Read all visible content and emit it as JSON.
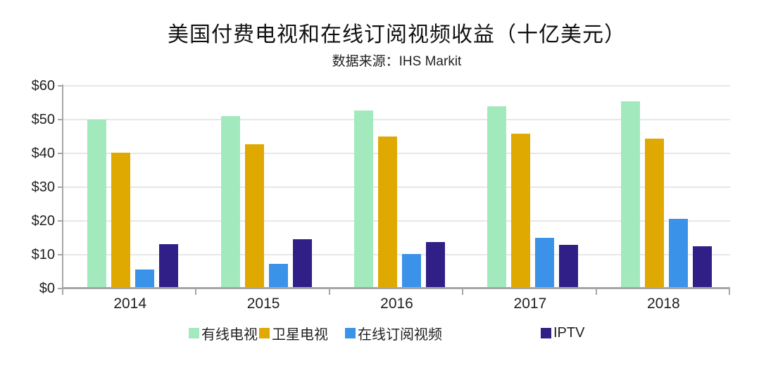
{
  "chart": {
    "title": "美国付费电视和在线订阅视频收益（十亿美元）",
    "subtitle": "数据来源：IHS Markit"
  },
  "chart_data": {
    "type": "bar",
    "title": "美国付费电视和在线订阅视频收益（十亿美元）",
    "subtitle": "数据来源：IHS Markit",
    "categories": [
      "2014",
      "2015",
      "2016",
      "2017",
      "2018"
    ],
    "series": [
      {
        "key": "cable-tv",
        "name": "有线电视",
        "color": "#a3e9be",
        "values": [
          50.0,
          51.1,
          52.7,
          54.0,
          55.4
        ]
      },
      {
        "key": "satellite-tv",
        "name": "卫星电视",
        "color": "#dfa901",
        "values": [
          40.3,
          42.8,
          45.0,
          45.8,
          44.3
        ]
      },
      {
        "key": "online-subscription-video",
        "name": "在线订阅视频",
        "color": "#3b92e9",
        "values": [
          5.7,
          7.2,
          10.3,
          14.9,
          20.7
        ]
      },
      {
        "key": "iptv",
        "name": "IPTV",
        "color": "#2f1f87",
        "values": [
          13.1,
          14.6,
          13.8,
          12.9,
          12.5
        ]
      }
    ],
    "ylabel": "",
    "xlabel": "",
    "ylim": [
      0,
      60
    ],
    "ytick_step": 10,
    "ytick_labels": [
      "$0",
      "$10",
      "$20",
      "$30",
      "$40",
      "$50",
      "$60"
    ],
    "grid": "horizontal",
    "legend_position": "bottom"
  },
  "colors": {
    "grid": "#e7e7e7",
    "axis": "#a6a6a6",
    "text": "#1f1f1f"
  }
}
